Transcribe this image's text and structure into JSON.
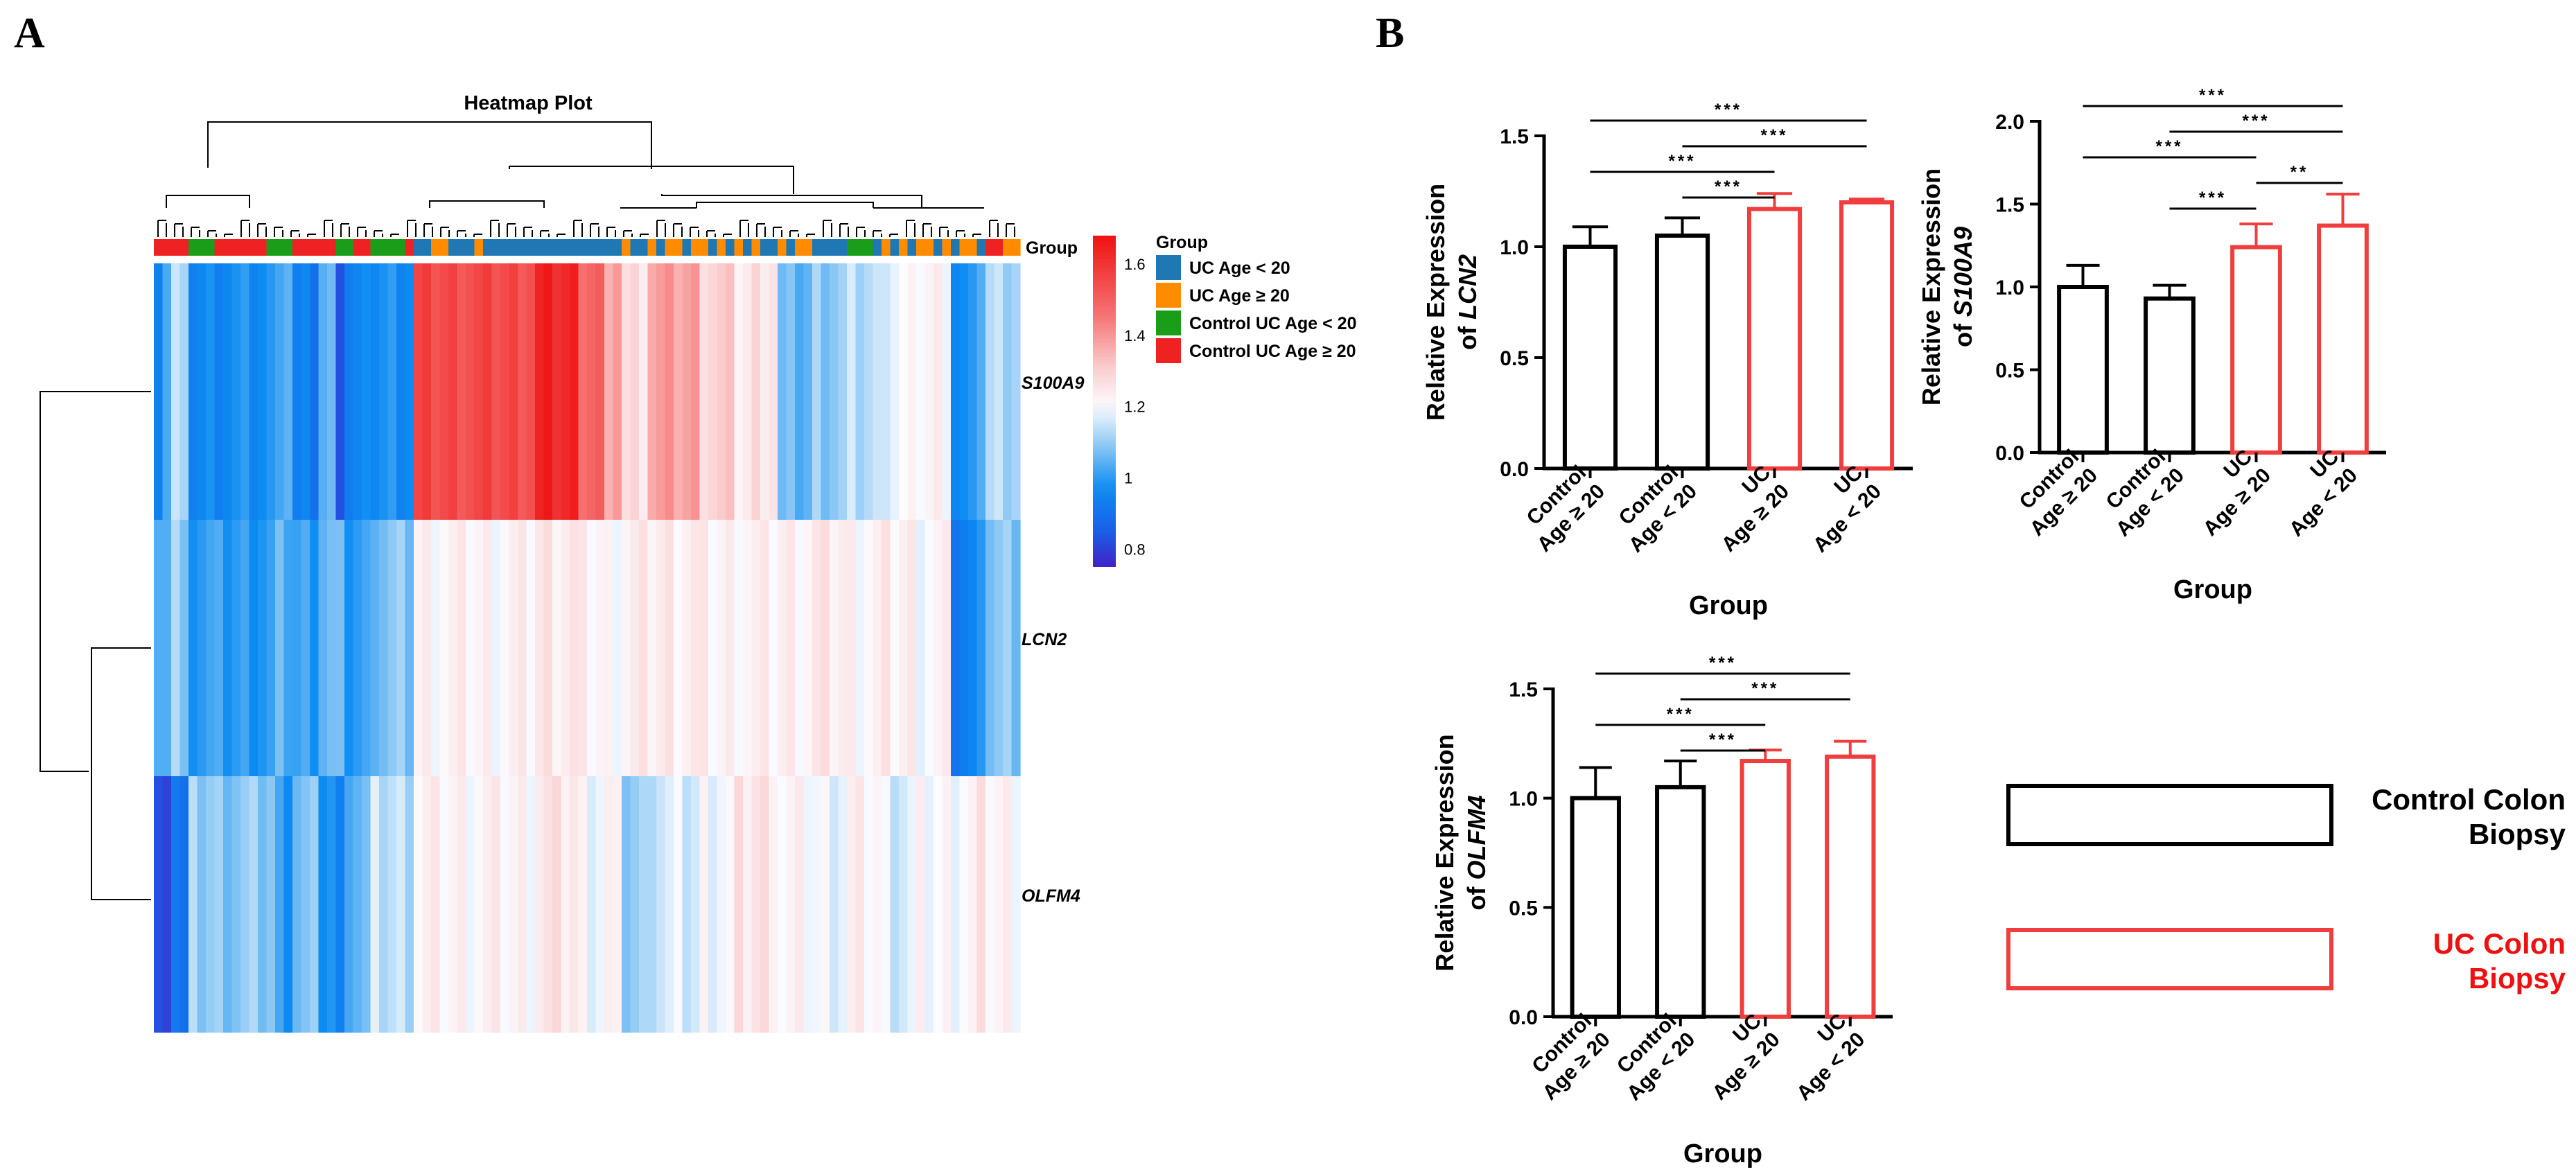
{
  "panel_labels": {
    "a": "A",
    "b": "B"
  },
  "colors": {
    "control": "#000000",
    "uc": "#f03d3d",
    "uc_text": "#ee1111",
    "group_uc_lt20": "#1f77b4",
    "group_uc_ge20": "#ff8c00",
    "group_ctrl_lt20": "#1a9e1a",
    "group_ctrl_ge20": "#ee2222"
  },
  "legend": {
    "control_line1": "Control Colon",
    "control_line2": "Biopsy",
    "uc_line1": "UC Colon",
    "uc_line2": "Biopsy"
  },
  "chart_data": [
    {
      "type": "heatmap",
      "title": "Heatmap Plot",
      "annotation_label": "Group",
      "legend_title": "Group",
      "legend_entries": [
        "UC Age < 20",
        "UC Age ≥ 20",
        "Control UC Age < 20",
        "Control UC Age ≥ 20"
      ],
      "rows": [
        "S100A9",
        "LCN2",
        "OLFM4"
      ],
      "colorbar_ticks": [
        "1.6",
        "1.4",
        "1.2",
        "1",
        "0.8"
      ],
      "colorbar_range": [
        0.75,
        1.68
      ],
      "n_columns": 100,
      "column_groups": [
        3,
        3,
        3,
        3,
        2,
        2,
        2,
        3,
        3,
        3,
        3,
        3,
        3,
        2,
        2,
        2,
        3,
        3,
        3,
        3,
        3,
        2,
        2,
        3,
        3,
        2,
        2,
        2,
        2,
        3,
        0,
        0,
        1,
        1,
        0,
        0,
        0,
        1,
        0,
        0,
        0,
        0,
        0,
        0,
        0,
        0,
        0,
        0,
        0,
        0,
        0,
        0,
        0,
        0,
        1,
        0,
        0,
        1,
        0,
        1,
        1,
        0,
        1,
        1,
        0,
        1,
        0,
        1,
        0,
        1,
        0,
        0,
        1,
        0,
        1,
        1,
        0,
        0,
        0,
        0,
        2,
        2,
        2,
        0,
        1,
        0,
        1,
        0,
        1,
        1,
        0,
        1,
        0,
        1,
        1,
        0,
        3,
        3,
        1,
        1
      ],
      "row_segments": [
        [
          [
            0,
            1,
            0.98
          ],
          [
            1,
            2,
            1.04
          ],
          [
            2,
            3,
            1.14
          ],
          [
            3,
            4,
            1.08
          ],
          [
            4,
            7,
            0.96
          ],
          [
            7,
            14,
            0.97
          ],
          [
            14,
            16,
            1.06
          ],
          [
            16,
            19,
            0.92
          ],
          [
            19,
            21,
            1.04
          ],
          [
            21,
            22,
            0.86
          ],
          [
            22,
            25,
            0.94
          ],
          [
            25,
            30,
            0.98
          ],
          [
            30,
            44,
            1.55
          ],
          [
            44,
            49,
            1.63
          ],
          [
            49,
            52,
            1.5
          ],
          [
            52,
            53,
            1.32
          ],
          [
            53,
            54,
            1.42
          ],
          [
            54,
            57,
            1.27
          ],
          [
            57,
            63,
            1.38
          ],
          [
            63,
            67,
            1.3
          ],
          [
            67,
            69,
            1.24
          ],
          [
            69,
            72,
            1.27
          ],
          [
            72,
            76,
            1.05
          ],
          [
            76,
            80,
            1.1
          ],
          [
            80,
            84,
            1.13
          ],
          [
            84,
            88,
            1.19
          ],
          [
            88,
            92,
            1.22
          ],
          [
            92,
            95,
            0.96
          ],
          [
            95,
            96,
            1.06
          ],
          [
            96,
            100,
            1.13
          ]
        ],
        [
          [
            0,
            1,
            1.0
          ],
          [
            1,
            2,
            1.06
          ],
          [
            2,
            3,
            1.13
          ],
          [
            3,
            4,
            1.05
          ],
          [
            4,
            7,
            1.01
          ],
          [
            7,
            14,
            1.0
          ],
          [
            14,
            16,
            1.04
          ],
          [
            16,
            19,
            1.01
          ],
          [
            19,
            21,
            1.06
          ],
          [
            21,
            22,
            1.04
          ],
          [
            22,
            25,
            1.0
          ],
          [
            25,
            30,
            1.08
          ],
          [
            30,
            44,
            1.22
          ],
          [
            44,
            49,
            1.25
          ],
          [
            49,
            52,
            1.22
          ],
          [
            52,
            53,
            1.2
          ],
          [
            53,
            54,
            1.22
          ],
          [
            54,
            57,
            1.23
          ],
          [
            57,
            63,
            1.24
          ],
          [
            63,
            67,
            1.22
          ],
          [
            67,
            69,
            1.23
          ],
          [
            69,
            72,
            1.22
          ],
          [
            72,
            76,
            1.23
          ],
          [
            76,
            80,
            1.24
          ],
          [
            80,
            84,
            1.22
          ],
          [
            84,
            88,
            1.23
          ],
          [
            88,
            92,
            1.21
          ],
          [
            92,
            95,
            0.93
          ],
          [
            95,
            96,
            1.03
          ],
          [
            96,
            100,
            1.08
          ]
        ],
        [
          [
            0,
            1,
            0.8
          ],
          [
            1,
            2,
            0.84
          ],
          [
            2,
            3,
            0.93
          ],
          [
            3,
            4,
            0.88
          ],
          [
            4,
            7,
            1.1
          ],
          [
            7,
            14,
            1.09
          ],
          [
            14,
            16,
            1.0
          ],
          [
            16,
            19,
            1.07
          ],
          [
            19,
            21,
            0.99
          ],
          [
            21,
            22,
            0.91
          ],
          [
            22,
            25,
            1.06
          ],
          [
            25,
            30,
            1.14
          ],
          [
            30,
            44,
            1.22
          ],
          [
            44,
            49,
            1.25
          ],
          [
            49,
            52,
            1.2
          ],
          [
            52,
            53,
            1.22
          ],
          [
            53,
            54,
            1.19
          ],
          [
            54,
            57,
            1.1
          ],
          [
            57,
            63,
            1.16
          ],
          [
            63,
            67,
            1.2
          ],
          [
            67,
            69,
            1.25
          ],
          [
            69,
            72,
            1.26
          ],
          [
            72,
            76,
            1.21
          ],
          [
            76,
            80,
            1.19
          ],
          [
            80,
            84,
            1.22
          ],
          [
            84,
            88,
            1.17
          ],
          [
            88,
            92,
            1.2
          ],
          [
            92,
            95,
            1.21
          ],
          [
            95,
            96,
            1.24
          ],
          [
            96,
            100,
            1.22
          ]
        ]
      ]
    },
    {
      "type": "bar",
      "gene": "LCN2",
      "ylabel_prefix": "Relative Expression",
      "ylabel_of": "of ",
      "xlabel": "Group",
      "ylim": [
        0,
        1.5
      ],
      "yticks": [
        "0.0",
        "0.5",
        "1.0",
        "1.5"
      ],
      "categories": [
        [
          "Control",
          "Age ≥ 20"
        ],
        [
          "Control",
          "Age < 20"
        ],
        [
          "UC",
          "Age ≥ 20"
        ],
        [
          "UC",
          "Age < 20"
        ]
      ],
      "bar_kind": [
        "control",
        "control",
        "uc",
        "uc"
      ],
      "values": [
        1.0,
        1.05,
        1.17,
        1.2
      ],
      "errors": [
        0.09,
        0.08,
        0.07,
        0.015
      ],
      "significance": [
        {
          "from": 0,
          "to": 3,
          "label": "***"
        },
        {
          "from": 1,
          "to": 3,
          "label": "***"
        },
        {
          "from": 0,
          "to": 2,
          "label": "***"
        },
        {
          "from": 1,
          "to": 2,
          "label": "***"
        }
      ]
    },
    {
      "type": "bar",
      "gene": "S100A9",
      "ylabel_prefix": "Relative Expression",
      "ylabel_of": "of ",
      "xlabel": "Group",
      "ylim": [
        0,
        2.0
      ],
      "yticks": [
        "0.0",
        "0.5",
        "1.0",
        "1.5",
        "2.0"
      ],
      "categories": [
        [
          "Control",
          "Age ≥ 20"
        ],
        [
          "Control",
          "Age < 20"
        ],
        [
          "UC",
          "Age ≥ 20"
        ],
        [
          "UC",
          "Age < 20"
        ]
      ],
      "bar_kind": [
        "control",
        "control",
        "uc",
        "uc"
      ],
      "values": [
        1.0,
        0.93,
        1.24,
        1.37
      ],
      "errors": [
        0.13,
        0.08,
        0.14,
        0.19
      ],
      "significance": [
        {
          "from": 0,
          "to": 3,
          "label": "***"
        },
        {
          "from": 1,
          "to": 3,
          "label": "***"
        },
        {
          "from": 0,
          "to": 2,
          "label": "***"
        },
        {
          "from": 2,
          "to": 3,
          "label": "**"
        },
        {
          "from": 1,
          "to": 2,
          "label": "***"
        }
      ]
    },
    {
      "type": "bar",
      "gene": "OLFM4",
      "ylabel_prefix": "Relative Expression",
      "ylabel_of": "of ",
      "xlabel": "Group",
      "ylim": [
        0,
        1.5
      ],
      "yticks": [
        "0.0",
        "0.5",
        "1.0",
        "1.5"
      ],
      "categories": [
        [
          "Control",
          "Age ≥ 20"
        ],
        [
          "Control",
          "Age < 20"
        ],
        [
          "UC",
          "Age ≥ 20"
        ],
        [
          "UC",
          "Age < 20"
        ]
      ],
      "bar_kind": [
        "control",
        "control",
        "uc",
        "uc"
      ],
      "values": [
        1.0,
        1.05,
        1.17,
        1.19
      ],
      "errors": [
        0.14,
        0.12,
        0.05,
        0.07
      ],
      "significance": [
        {
          "from": 0,
          "to": 3,
          "label": "***"
        },
        {
          "from": 1,
          "to": 3,
          "label": "***"
        },
        {
          "from": 0,
          "to": 2,
          "label": "***"
        },
        {
          "from": 1,
          "to": 2,
          "label": "***"
        }
      ]
    }
  ]
}
